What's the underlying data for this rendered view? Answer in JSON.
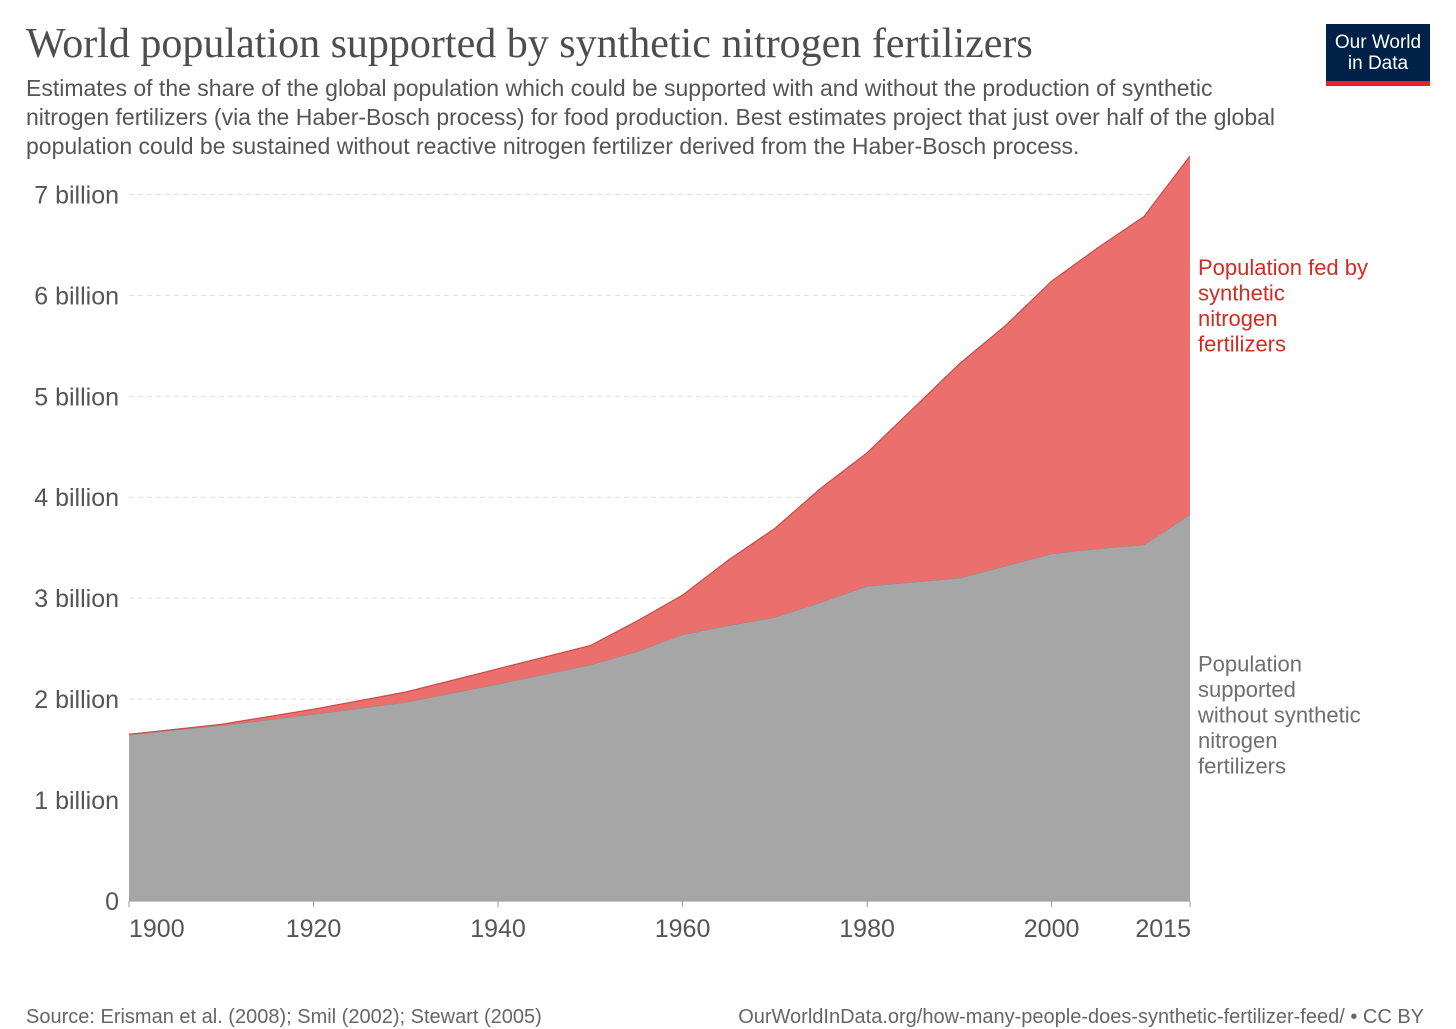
{
  "header": {
    "title": "World population supported by synthetic nitrogen fertilizers",
    "subtitle": "Estimates of the share of the global population which could be supported with and without the production of synthetic nitrogen fertilizers (via the Haber-Bosch process) for food production. Best estimates project that just over half of the global population could be sustained without reactive nitrogen fertilizer derived from the Haber-Bosch process.",
    "logo_line1": "Our World",
    "logo_line2": "in Data"
  },
  "footer": {
    "source": "Source: Erisman et al. (2008); Smil (2002); Stewart (2005)",
    "url": "OurWorldInData.org/how-many-people-does-synthetic-fertilizer-feed/ • CC BY"
  },
  "colors": {
    "without": "#a6a6a6",
    "fed": "#eb6f6d",
    "fed_label": "#d42b21",
    "without_label": "#6e6e6e",
    "logo_bg": "#002147",
    "logo_bar": "#e0262b"
  },
  "chart_data": {
    "type": "area",
    "stacked": true,
    "x": [
      1900,
      1910,
      1920,
      1930,
      1940,
      1950,
      1955,
      1960,
      1965,
      1970,
      1975,
      1980,
      1985,
      1990,
      1995,
      2000,
      2005,
      2010,
      2015
    ],
    "series": [
      {
        "name": "Population supported without synthetic nitrogen fertilizers",
        "label_lines": [
          "Population",
          "supported",
          "without synthetic",
          "nitrogen",
          "fertilizers"
        ],
        "color_key": "without",
        "label_color_key": "without_label",
        "label_value": 1.85,
        "values": [
          1.65,
          1.74,
          1.85,
          1.97,
          2.15,
          2.34,
          2.47,
          2.64,
          2.73,
          2.81,
          2.96,
          3.12,
          3.16,
          3.2,
          3.32,
          3.44,
          3.49,
          3.53,
          3.83
        ]
      },
      {
        "name": "Population fed by synthetic nitrogen fertilizers",
        "label_lines": [
          "Population fed by",
          "synthetic",
          "nitrogen",
          "fertilizers"
        ],
        "color_key": "fed",
        "label_color_key": "fed_label",
        "label_value": 5.9,
        "values": [
          0.0,
          0.01,
          0.05,
          0.1,
          0.15,
          0.19,
          0.3,
          0.39,
          0.65,
          0.88,
          1.13,
          1.32,
          1.72,
          2.12,
          2.38,
          2.7,
          2.98,
          3.25,
          3.55
        ]
      }
    ],
    "x_ticks": [
      1900,
      1920,
      1940,
      1960,
      1980,
      2000,
      2015
    ],
    "y_ticks": [
      0,
      1,
      2,
      3,
      4,
      5,
      6,
      7
    ],
    "y_tick_labels": [
      "0",
      "1 billion",
      "2 billion",
      "3 billion",
      "4 billion",
      "5 billion",
      "6 billion",
      "7 billion"
    ],
    "xlim": [
      1900,
      2015
    ],
    "ylim": [
      0,
      7.4
    ],
    "unit": "billion"
  }
}
